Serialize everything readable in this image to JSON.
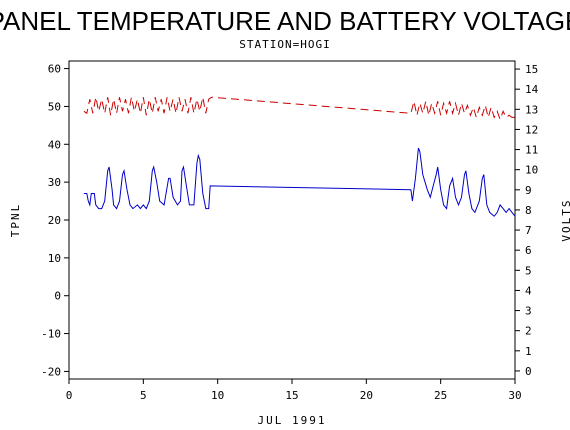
{
  "chart_data": {
    "type": "line",
    "title": "PANEL TEMPERATURE AND BATTERY VOLTAGE",
    "subtitle": "STATION=HOGI",
    "xlabel": "JUL 1991",
    "ylabel_left": "TPNL",
    "ylabel_right": "VOLTS",
    "xlim": [
      0,
      30
    ],
    "ylim_left": [
      -22,
      62
    ],
    "ylim_right": [
      -0.4,
      15.4
    ],
    "x_ticks": [
      0,
      5,
      10,
      15,
      20,
      25,
      30
    ],
    "y_ticks_left": [
      -20,
      -10,
      0,
      10,
      20,
      30,
      40,
      50,
      60
    ],
    "y_ticks_right": [
      0,
      1,
      2,
      3,
      4,
      5,
      6,
      7,
      8,
      9,
      10,
      11,
      12,
      13,
      14,
      15
    ],
    "grid": false,
    "series": [
      {
        "axis": "left",
        "color": "#0000cc",
        "style": "solid",
        "points": [
          [
            1.0,
            27
          ],
          [
            1.2,
            27
          ],
          [
            1.3,
            25
          ],
          [
            1.4,
            24
          ],
          [
            1.5,
            27
          ],
          [
            1.7,
            27
          ],
          [
            1.8,
            24
          ],
          [
            2.0,
            23
          ],
          [
            2.2,
            23
          ],
          [
            2.4,
            25
          ],
          [
            2.6,
            33
          ],
          [
            2.7,
            34
          ],
          [
            2.9,
            28
          ],
          [
            3.0,
            24
          ],
          [
            3.2,
            23
          ],
          [
            3.4,
            25
          ],
          [
            3.6,
            32
          ],
          [
            3.7,
            33
          ],
          [
            3.9,
            28
          ],
          [
            4.1,
            24
          ],
          [
            4.3,
            23
          ],
          [
            4.6,
            24
          ],
          [
            4.8,
            23
          ],
          [
            5.0,
            24
          ],
          [
            5.2,
            23
          ],
          [
            5.4,
            25
          ],
          [
            5.6,
            33
          ],
          [
            5.7,
            34
          ],
          [
            5.9,
            30
          ],
          [
            6.1,
            25
          ],
          [
            6.4,
            24
          ],
          [
            6.7,
            31
          ],
          [
            6.8,
            31
          ],
          [
            7.0,
            26
          ],
          [
            7.3,
            24
          ],
          [
            7.5,
            25
          ],
          [
            7.6,
            33
          ],
          [
            7.7,
            34
          ],
          [
            7.9,
            29
          ],
          [
            8.1,
            24
          ],
          [
            8.4,
            24
          ],
          [
            8.6,
            35
          ],
          [
            8.7,
            37
          ],
          [
            8.8,
            36
          ],
          [
            9.0,
            27
          ],
          [
            9.2,
            23
          ],
          [
            9.4,
            23
          ],
          [
            9.5,
            29
          ],
          [
            23.0,
            28
          ],
          [
            23.1,
            25
          ],
          [
            23.3,
            31
          ],
          [
            23.5,
            39
          ],
          [
            23.6,
            38
          ],
          [
            23.8,
            32
          ],
          [
            24.1,
            28
          ],
          [
            24.3,
            26
          ],
          [
            24.5,
            29
          ],
          [
            24.7,
            32
          ],
          [
            24.8,
            34
          ],
          [
            25.0,
            28
          ],
          [
            25.2,
            24
          ],
          [
            25.4,
            23
          ],
          [
            25.6,
            29
          ],
          [
            25.8,
            31
          ],
          [
            26.0,
            26
          ],
          [
            26.2,
            24
          ],
          [
            26.4,
            26
          ],
          [
            26.6,
            32
          ],
          [
            26.7,
            33
          ],
          [
            26.9,
            27
          ],
          [
            27.1,
            23
          ],
          [
            27.3,
            22
          ],
          [
            27.6,
            25
          ],
          [
            27.8,
            31
          ],
          [
            27.9,
            32
          ],
          [
            28.1,
            24
          ],
          [
            28.3,
            22
          ],
          [
            28.6,
            21
          ],
          [
            28.8,
            22
          ],
          [
            29.0,
            24
          ],
          [
            29.2,
            23
          ],
          [
            29.4,
            22
          ],
          [
            29.6,
            23
          ],
          [
            29.8,
            22
          ],
          [
            30.0,
            21
          ]
        ]
      },
      {
        "axis": "right",
        "color": "#cc0000",
        "style": "dashed",
        "points": [
          [
            1.0,
            12.9
          ],
          [
            1.2,
            12.8
          ],
          [
            1.4,
            13.5
          ],
          [
            1.6,
            12.8
          ],
          [
            1.8,
            13.6
          ],
          [
            2.0,
            12.9
          ],
          [
            2.2,
            13.5
          ],
          [
            2.4,
            12.8
          ],
          [
            2.6,
            13.6
          ],
          [
            2.8,
            12.7
          ],
          [
            3.0,
            13.5
          ],
          [
            3.2,
            12.8
          ],
          [
            3.4,
            13.6
          ],
          [
            3.6,
            12.9
          ],
          [
            3.8,
            13.5
          ],
          [
            4.0,
            12.8
          ],
          [
            4.2,
            13.6
          ],
          [
            4.4,
            12.9
          ],
          [
            4.6,
            13.5
          ],
          [
            4.8,
            12.8
          ],
          [
            5.0,
            13.6
          ],
          [
            5.2,
            12.7
          ],
          [
            5.4,
            13.5
          ],
          [
            5.6,
            12.8
          ],
          [
            5.8,
            13.6
          ],
          [
            6.0,
            12.9
          ],
          [
            6.2,
            13.5
          ],
          [
            6.4,
            12.8
          ],
          [
            6.6,
            13.6
          ],
          [
            6.8,
            12.9
          ],
          [
            7.0,
            13.5
          ],
          [
            7.2,
            12.8
          ],
          [
            7.4,
            13.6
          ],
          [
            7.6,
            12.9
          ],
          [
            7.8,
            13.5
          ],
          [
            8.0,
            12.8
          ],
          [
            8.2,
            13.6
          ],
          [
            8.4,
            12.8
          ],
          [
            8.6,
            13.5
          ],
          [
            8.8,
            12.9
          ],
          [
            9.0,
            13.6
          ],
          [
            9.2,
            12.8
          ],
          [
            9.4,
            13.5
          ],
          [
            9.6,
            13.6
          ],
          [
            23.0,
            12.8
          ],
          [
            23.2,
            13.4
          ],
          [
            23.4,
            12.7
          ],
          [
            23.6,
            13.3
          ],
          [
            23.8,
            12.8
          ],
          [
            24.0,
            13.4
          ],
          [
            24.2,
            12.7
          ],
          [
            24.4,
            13.3
          ],
          [
            24.6,
            12.8
          ],
          [
            24.8,
            13.4
          ],
          [
            25.0,
            12.7
          ],
          [
            25.2,
            13.3
          ],
          [
            25.4,
            12.8
          ],
          [
            25.6,
            13.4
          ],
          [
            25.8,
            12.8
          ],
          [
            26.0,
            13.3
          ],
          [
            26.2,
            12.7
          ],
          [
            26.4,
            13.3
          ],
          [
            26.6,
            12.8
          ],
          [
            26.8,
            13.2
          ],
          [
            27.0,
            12.7
          ],
          [
            27.2,
            13.1
          ],
          [
            27.4,
            12.6
          ],
          [
            27.6,
            13.1
          ],
          [
            27.8,
            12.7
          ],
          [
            28.0,
            13.2
          ],
          [
            28.2,
            12.6
          ],
          [
            28.4,
            13.1
          ],
          [
            28.6,
            12.6
          ],
          [
            28.8,
            12.9
          ],
          [
            29.0,
            12.5
          ],
          [
            29.2,
            12.9
          ],
          [
            29.4,
            12.6
          ],
          [
            29.6,
            12.7
          ],
          [
            29.8,
            12.6
          ],
          [
            30.0,
            12.6
          ]
        ]
      }
    ]
  }
}
